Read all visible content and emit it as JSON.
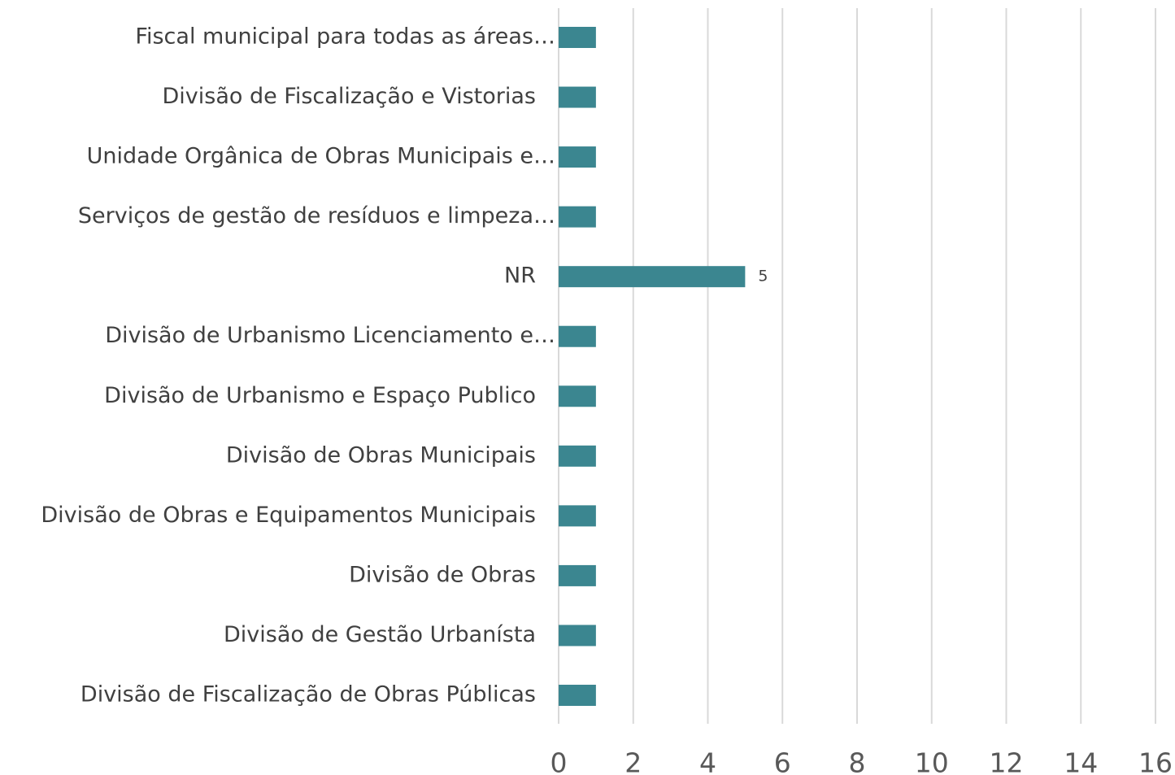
{
  "chart_data": {
    "type": "hbar",
    "categories": [
      "Fiscal municipal para todas as áreas…",
      "Divisão de Fiscalização e Vistorias",
      "Unidade Orgânica de Obras Municipais e…",
      "Serviços de gestão de resíduos e limpeza…",
      "NR",
      "Divisão de Urbanismo Licenciamento e…",
      "Divisão de Urbanismo e Espaço Publico",
      "Divisão de Obras Municipais",
      "Divisão de Obras e Equipamentos Municipais",
      "Divisão de Obras",
      "Divisão de Gestão Urbanísta",
      "Divisão de Fiscalização de Obras Públicas"
    ],
    "values": [
      1,
      1,
      1,
      1,
      5,
      1,
      1,
      1,
      1,
      1,
      1,
      1
    ],
    "value_labels": [
      null,
      null,
      null,
      null,
      "5",
      null,
      null,
      null,
      null,
      null,
      null,
      null
    ],
    "color": "#3b8690",
    "xlim": [
      0,
      16
    ],
    "xticks": [
      0,
      2,
      4,
      6,
      8,
      10,
      12,
      14,
      16
    ],
    "grid": true
  }
}
